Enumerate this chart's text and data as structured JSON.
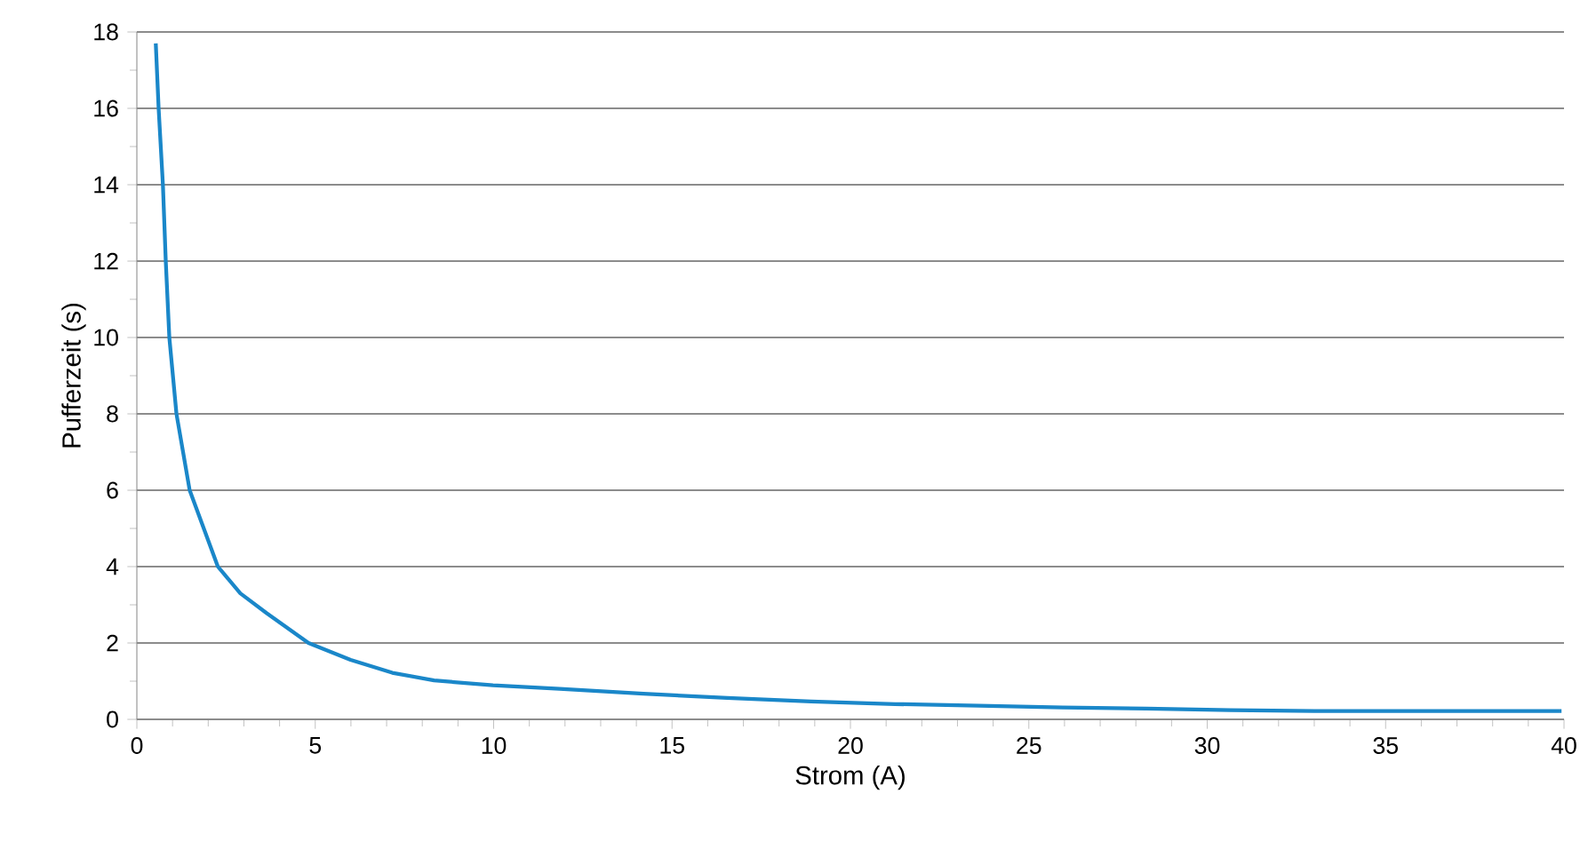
{
  "chart_data": {
    "type": "line",
    "xlabel": "Strom (A)",
    "ylabel": "Pufferzeit (s)",
    "x": [
      0.53,
      0.61,
      0.73,
      0.81,
      0.91,
      1.11,
      1.48,
      2.27,
      2.9,
      3.64,
      4.81,
      5.99,
      7.16,
      8.33,
      9.98,
      11.85,
      14.2,
      16.55,
      18.9,
      21.25,
      23.6,
      25.95,
      28.3,
      30.65,
      33.0,
      36.5,
      39.93
    ],
    "values": [
      17.7,
      16,
      14,
      12,
      10,
      8,
      6,
      4,
      3.3,
      2.78,
      2.0,
      1.56,
      1.22,
      1.02,
      0.89,
      0.8,
      0.67,
      0.56,
      0.47,
      0.4,
      0.36,
      0.31,
      0.28,
      0.24,
      0.22,
      0.22,
      0.22
    ],
    "color": "#1a87c9",
    "xlim": [
      0,
      40
    ],
    "ylim": [
      0,
      18
    ],
    "xticks": [
      0,
      5,
      10,
      15,
      20,
      25,
      30,
      35,
      40
    ],
    "yticks": [
      0,
      2,
      4,
      6,
      8,
      10,
      12,
      14,
      16,
      18
    ],
    "grid": "y"
  }
}
